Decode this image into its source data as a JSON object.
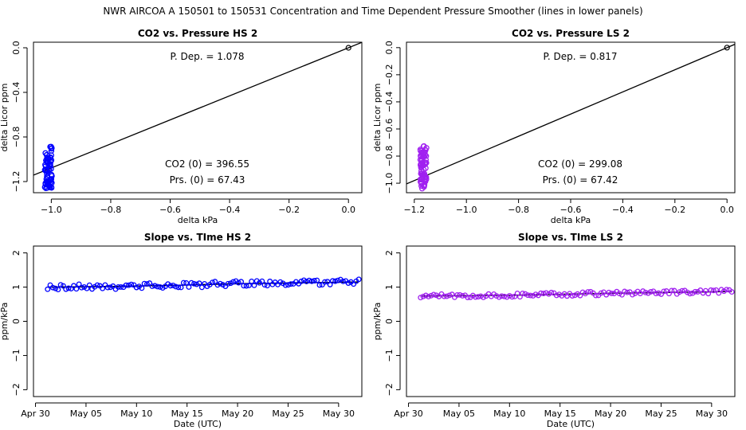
{
  "main_title": "NWR   AIRCOA A   150501 to 150531   Concentration and Time Dependent Pressure Smoother (lines in lower panels)",
  "colors": {
    "hs": "#0000ff",
    "ls": "#a020f0",
    "line": "#000000"
  },
  "chart_data": [
    {
      "id": "hs-pressure",
      "type": "scatter",
      "title": "CO2 vs. Pressure HS 2",
      "xlabel": "delta kPa",
      "ylabel": "delta Licor ppm",
      "xlim": [
        -1.06,
        0.045
      ],
      "ylim": [
        -1.3,
        0.05
      ],
      "xticks": [
        -1.0,
        -0.8,
        -0.6,
        -0.4,
        -0.2,
        0.0
      ],
      "xtick_labels": [
        "−1.0",
        "−0.8",
        "−0.6",
        "−0.4",
        "−0.2",
        "0.0"
      ],
      "yticks": [
        0.0,
        -0.4,
        -0.8,
        -1.2
      ],
      "ytick_labels": [
        "0.0",
        "−0.4",
        "−0.8",
        "−1.2"
      ],
      "annotations": {
        "p_dep": "P. Dep. =  1.078",
        "co2_0": "CO2 (0) =  396.55",
        "prs_0": "Prs. (0) =  67.43"
      },
      "fit_slope": 1.078,
      "cluster": {
        "x_center": -1.01,
        "x_spread": 0.012,
        "y_min": -1.27,
        "y_max": -0.88,
        "count": 70
      },
      "origin_point": [
        0.0,
        0.0
      ]
    },
    {
      "id": "ls-pressure",
      "type": "scatter",
      "title": "CO2 vs. Pressure LS 2",
      "xlabel": "delta kPa",
      "ylabel": "delta Licor ppm",
      "xlim": [
        -1.23,
        0.03
      ],
      "ylim": [
        -1.07,
        0.04
      ],
      "xticks": [
        -1.2,
        -1.0,
        -0.8,
        -0.6,
        -0.4,
        -0.2,
        0.0
      ],
      "xtick_labels": [
        "−1.2",
        "−1.0",
        "−0.8",
        "−0.6",
        "−0.4",
        "−0.2",
        "0.0"
      ],
      "yticks": [
        0.0,
        -0.2,
        -0.4,
        -0.6,
        -0.8,
        -1.0
      ],
      "ytick_labels": [
        "0.0",
        "−0.2",
        "−0.4",
        "−0.6",
        "−0.8",
        "−1.0"
      ],
      "annotations": {
        "p_dep": "P. Dep. =  0.817",
        "co2_0": "CO2 (0) =  299.08",
        "prs_0": "Prs. (0) =  67.42"
      },
      "fit_slope": 0.817,
      "cluster": {
        "x_center": -1.165,
        "x_spread": 0.012,
        "y_min": -1.04,
        "y_max": -0.72,
        "count": 70
      },
      "origin_point": [
        0.0,
        0.0
      ]
    },
    {
      "id": "hs-time",
      "type": "scatter",
      "title": "Slope vs. TIme HS 2",
      "xlabel": "Date (UTC)",
      "ylabel": "ppm/kPa",
      "xlim": [
        -0.2,
        32.3
      ],
      "ylim": [
        -2.2,
        2.2
      ],
      "xticks": [
        0,
        5,
        10,
        15,
        20,
        25,
        30
      ],
      "xtick_labels": [
        "Apr 30",
        "May 05",
        "May 10",
        "May 15",
        "May 20",
        "May 25",
        "May 30"
      ],
      "yticks": [
        -2,
        -1,
        0,
        1,
        2
      ],
      "ytick_labels": [
        "−2",
        "−1",
        "0",
        "1",
        "2"
      ],
      "x_start": 1.2,
      "x_end": 32.0,
      "trend": {
        "x": [
          1.2,
          8,
          15,
          20,
          25,
          32
        ],
        "y": [
          1.0,
          1.02,
          1.06,
          1.1,
          1.12,
          1.15
        ]
      },
      "noise": 0.08,
      "count": 120
    },
    {
      "id": "ls-time",
      "type": "scatter",
      "title": "Slope vs. TIme LS 2",
      "xlabel": "Date (UTC)",
      "ylabel": "ppm/kPa",
      "xlim": [
        -0.2,
        32.3
      ],
      "ylim": [
        -2.2,
        2.2
      ],
      "xticks": [
        0,
        5,
        10,
        15,
        20,
        25,
        30
      ],
      "xtick_labels": [
        "Apr 30",
        "May 05",
        "May 10",
        "May 15",
        "May 20",
        "May 25",
        "May 30"
      ],
      "yticks": [
        -2,
        -1,
        0,
        1,
        2
      ],
      "ytick_labels": [
        "−2",
        "−1",
        "0",
        "1",
        "2"
      ],
      "x_start": 1.2,
      "x_end": 32.0,
      "trend": {
        "x": [
          1.2,
          10,
          20,
          32
        ],
        "y": [
          0.74,
          0.76,
          0.82,
          0.87
        ]
      },
      "noise": 0.06,
      "count": 120
    }
  ]
}
